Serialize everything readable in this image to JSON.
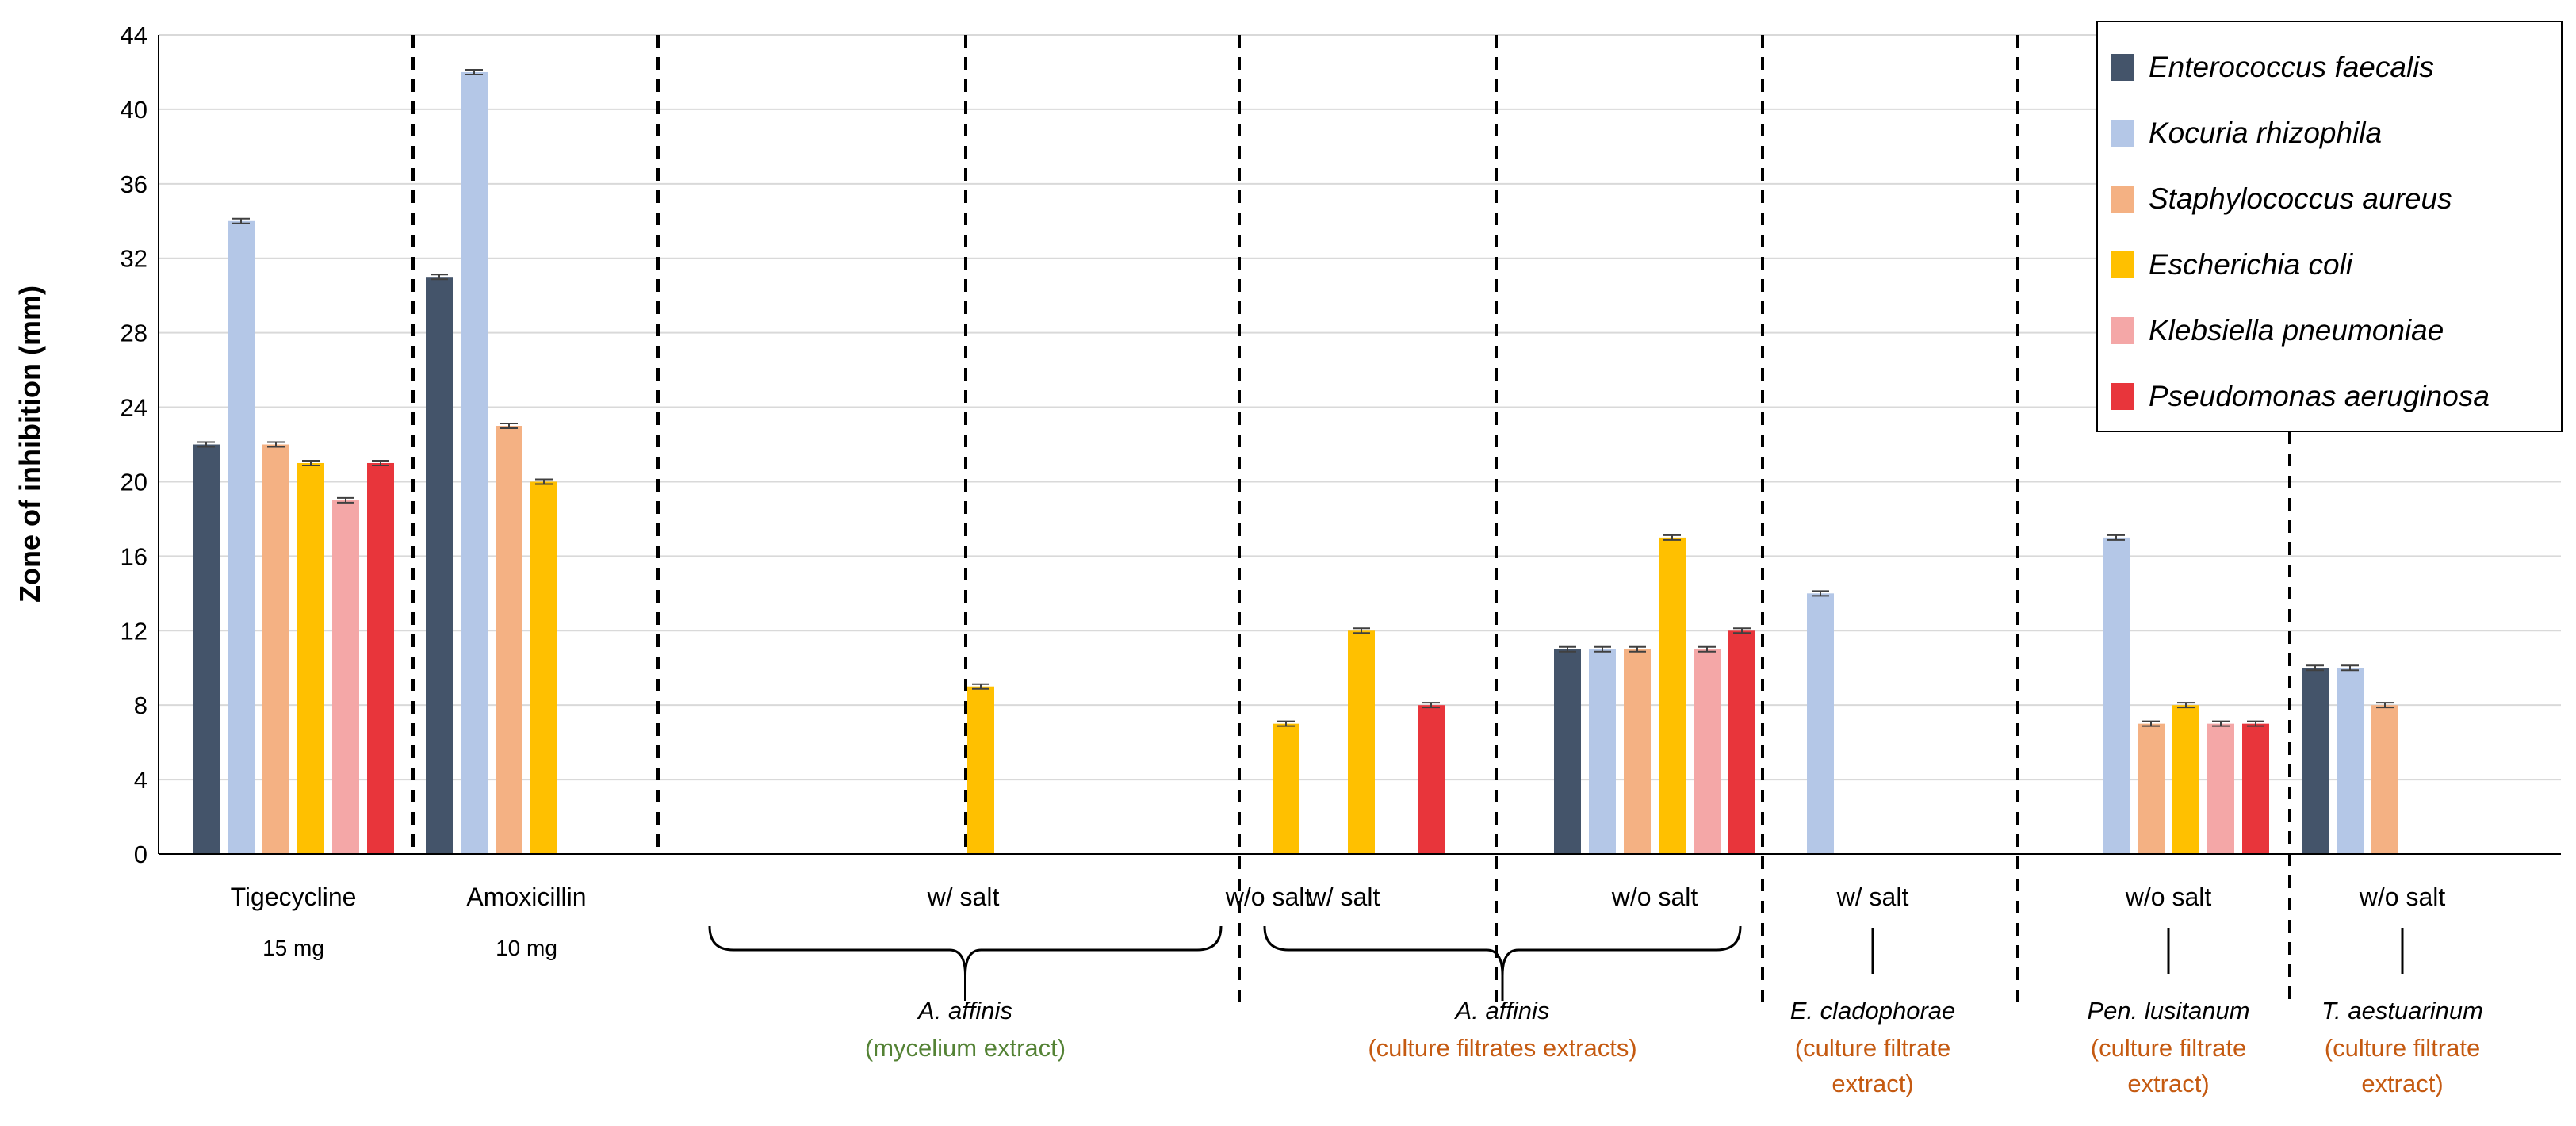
{
  "chart_data": {
    "type": "bar",
    "title": "",
    "xlabel": "",
    "ylabel": "Zone of inhibition (mm)",
    "ylim": [
      0,
      44
    ],
    "yticks": [
      0,
      4,
      8,
      12,
      16,
      20,
      24,
      28,
      32,
      36,
      40,
      44
    ],
    "grid": true,
    "legend_position": "top-right",
    "categories": [
      {
        "label": "Tigecycline",
        "sublabel": "15 mg"
      },
      {
        "label": "Amoxicillin",
        "sublabel": "10 mg"
      },
      {
        "label": "w/ salt",
        "sublabel": ""
      },
      {
        "label": "w/o salt",
        "sublabel": ""
      },
      {
        "label": "w/ salt",
        "sublabel": ""
      },
      {
        "label": "w/o salt",
        "sublabel": ""
      },
      {
        "label": "w/ salt",
        "sublabel": ""
      },
      {
        "label": "w/o salt",
        "sublabel": ""
      },
      {
        "label": "w/o salt",
        "sublabel": ""
      }
    ],
    "series": [
      {
        "name": "Enterococcus faecalis",
        "color": "#44546a",
        "values": [
          22,
          31,
          0,
          0,
          0,
          11,
          0,
          0,
          10
        ]
      },
      {
        "name": "Kocuria rhizophila",
        "color": "#b4c7e7",
        "values": [
          34,
          42,
          0,
          0,
          0,
          11,
          14,
          17,
          10
        ]
      },
      {
        "name": "Staphylococcus aureus",
        "color": "#f4b183",
        "values": [
          22,
          23,
          0,
          0,
          0,
          11,
          0,
          7,
          8
        ]
      },
      {
        "name": "Escherichia coli",
        "color": "#ffc000",
        "values": [
          21,
          20,
          9,
          7,
          12,
          17,
          0,
          8,
          0
        ]
      },
      {
        "name": "Klebsiella pneumoniae",
        "color": "#f4a7a7",
        "values": [
          19,
          0,
          0,
          0,
          0,
          11,
          0,
          7,
          0
        ]
      },
      {
        "name": "Pseudomonas aeruginosa",
        "color": "#e8353b",
        "values": [
          21,
          0,
          0,
          0,
          8,
          12,
          0,
          7,
          0
        ]
      }
    ],
    "groups": [
      {
        "name": "A. affinis",
        "sub": "(mycelium extract)",
        "sub_color": "#548235",
        "categories": [
          2,
          3
        ]
      },
      {
        "name": "A. affinis",
        "sub": "(culture filtrates extracts)",
        "sub_color": "#c55a11",
        "categories": [
          4,
          5
        ]
      },
      {
        "name": "E. cladophorae",
        "sub": "(culture filtrate extract)",
        "sub_color": "#c55a11",
        "sub_lines": [
          "(culture filtrate",
          "extract)"
        ],
        "categories": [
          6
        ]
      },
      {
        "name": "Pen. lusitanum",
        "sub": "(culture filtrate extract)",
        "sub_color": "#c55a11",
        "sub_lines": [
          "(culture filtrate",
          "extract)"
        ],
        "categories": [
          7
        ]
      },
      {
        "name": "T. aestuarinum",
        "sub": "(culture filtrate extract)",
        "sub_color": "#c55a11",
        "sub_lines": [
          "(culture filtrate",
          "extract)"
        ],
        "categories": [
          8
        ]
      }
    ],
    "dividers_after_category": [
      0,
      1,
      2,
      3,
      4,
      5,
      6,
      7
    ]
  }
}
